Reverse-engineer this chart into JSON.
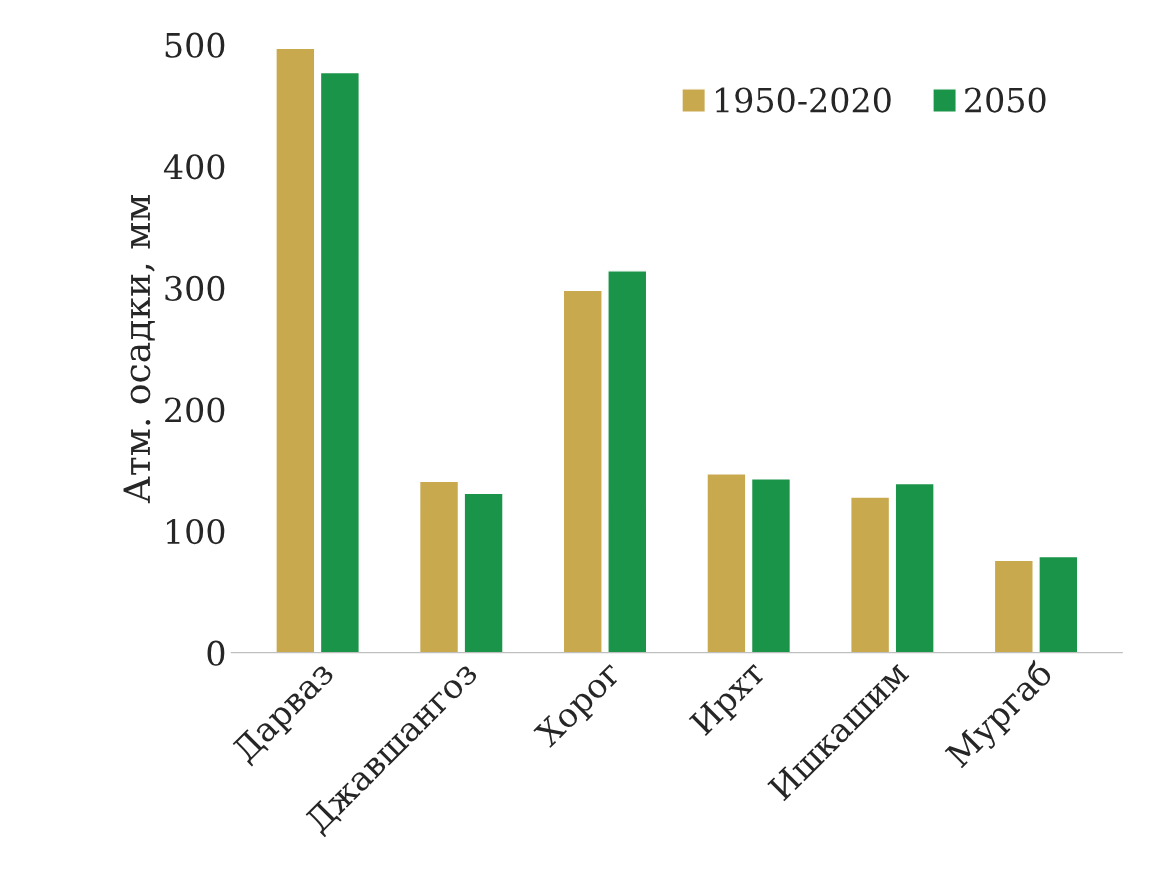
{
  "chart_data": {
    "type": "bar",
    "ylabel": "Атм. осадки, мм",
    "categories": [
      "Дарваз",
      "Джавшангоз",
      "Хорог",
      "Ирхт",
      "Ишкашим",
      "Мургаб"
    ],
    "series": [
      {
        "name": "1950-2020",
        "color": "#c8a94e",
        "values": [
          497,
          141,
          298,
          147,
          128,
          76
        ]
      },
      {
        "name": "2050",
        "color": "#1a9448",
        "values": [
          477,
          131,
          314,
          143,
          139,
          79
        ]
      }
    ],
    "ylim": [
      0,
      500
    ],
    "yticks": [
      0,
      100,
      200,
      300,
      400,
      500
    ],
    "grid": false,
    "legend": "top right"
  }
}
